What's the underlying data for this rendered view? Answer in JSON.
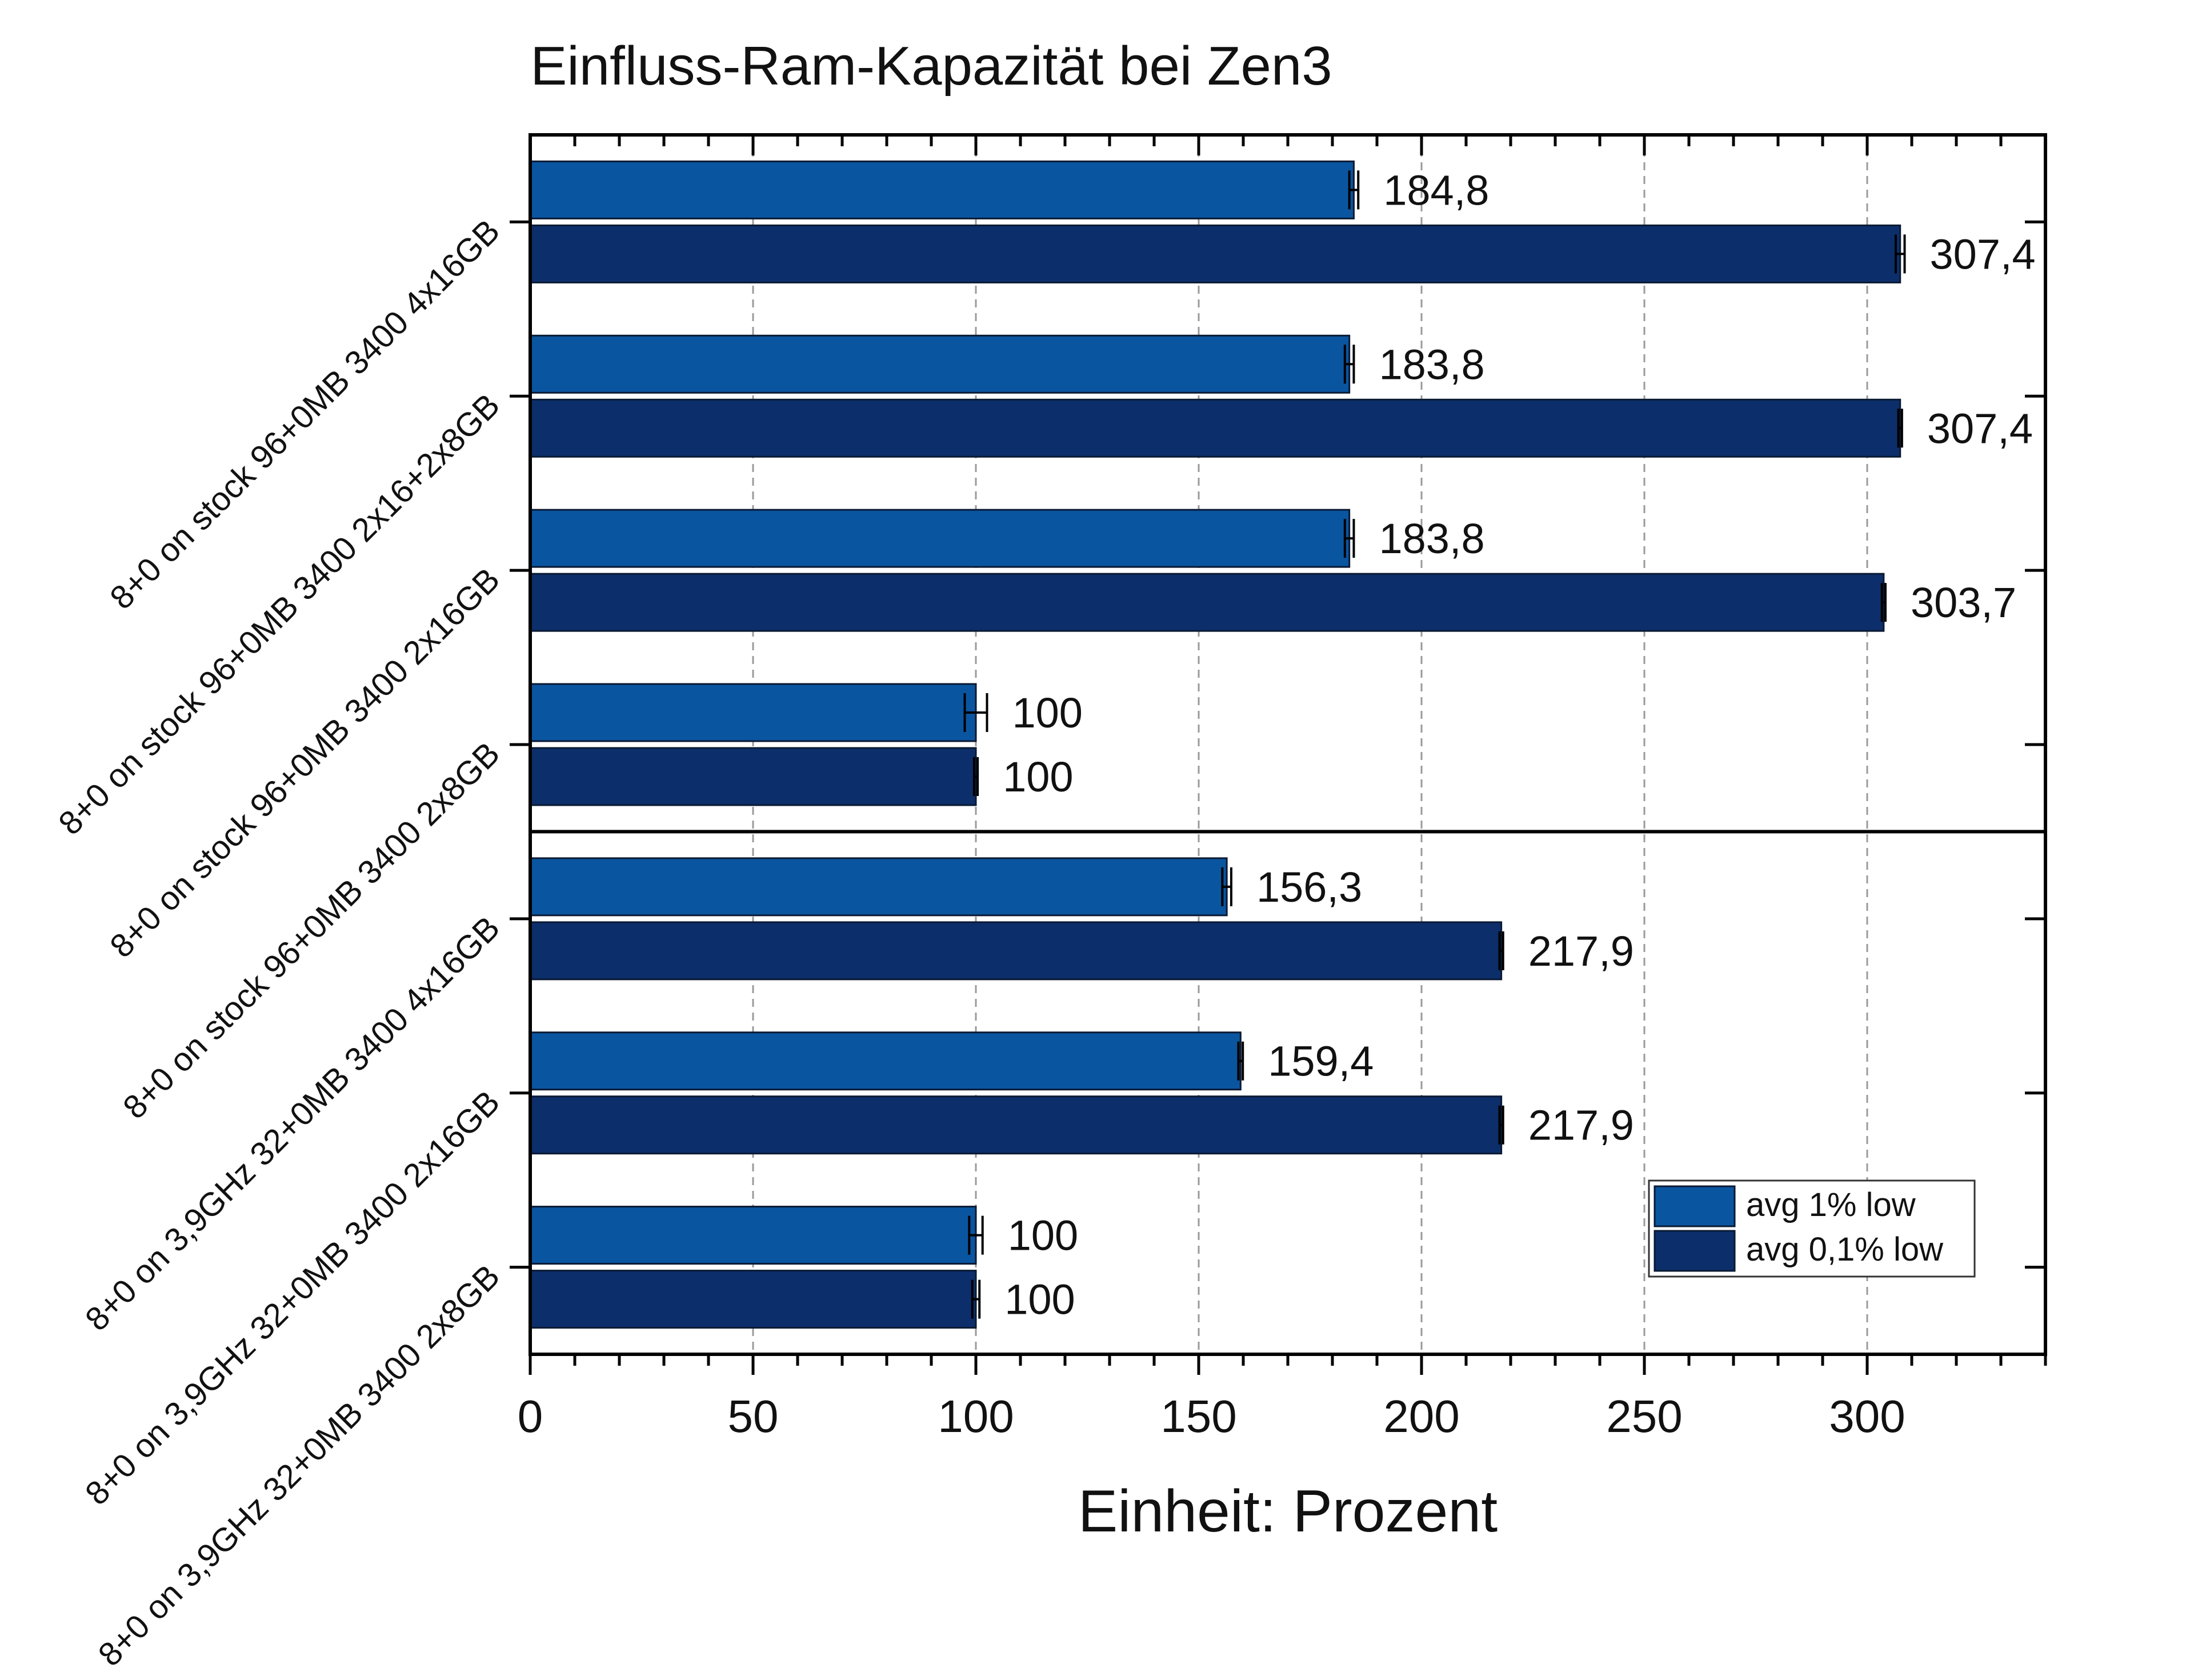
{
  "chart_data": {
    "type": "bar",
    "orientation": "horizontal",
    "title": "Einfluss-Ram-Kapazität bei Zen3",
    "xlabel": "Einheit: Prozent",
    "ylabel": "",
    "xlim": [
      0,
      340
    ],
    "xticks": [
      "0",
      "50",
      "100",
      "150",
      "200",
      "250",
      "300"
    ],
    "xtick_values": [
      0,
      50,
      100,
      150,
      200,
      250,
      300
    ],
    "grid": "vertical dashed",
    "legend_position": "bottom-right",
    "categories": [
      "8+0 on stock 96+0MB 3400 4x16GB",
      "8+0 on stock 96+0MB 3400 2x16+2x8GB",
      "8+0 on stock 96+0MB 3400 2x16GB",
      "8+0 on stock 96+0MB 3400 2x8GB",
      "8+0 on 3,9GHz 32+0MB 3400 4x16GB",
      "8+0 on 3,9GHz 32+0MB 3400 2x16GB",
      "8+0 on 3,9GHz 32+0MB 3400 2x8GB"
    ],
    "series": [
      {
        "name": "avg 1% low",
        "color": "#0a55a0",
        "values": [
          184.8,
          183.8,
          183.8,
          100,
          156.3,
          159.4,
          100
        ],
        "labels": [
          "184,8",
          "183,8",
          "183,8",
          "100",
          "156,3",
          "159,4",
          "100"
        ],
        "errors": [
          1.0,
          1.0,
          1.0,
          2.5,
          1.0,
          0.5,
          1.5
        ]
      },
      {
        "name": "avg 0,1% low",
        "color": "#0c2f6b",
        "values": [
          307.4,
          307.4,
          303.7,
          100,
          217.9,
          217.9,
          100
        ],
        "labels": [
          "307,4",
          "307,4",
          "303,7",
          "100",
          "217,9",
          "217,9",
          "100"
        ],
        "errors": [
          1.0,
          0.4,
          0.4,
          0.4,
          0.4,
          0.4,
          0.8
        ]
      }
    ],
    "separator_after_category_index": 3
  }
}
